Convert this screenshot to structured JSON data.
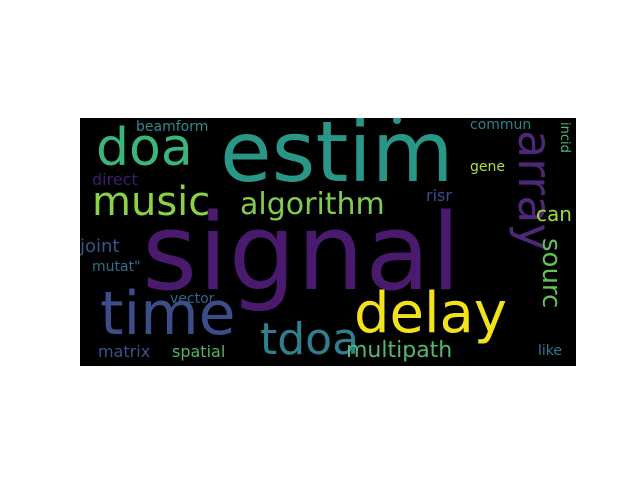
{
  "wordcloud": {
    "background_color": "#000000",
    "words": {
      "signal": "signal",
      "estim": "estim",
      "doa": "doa",
      "music": "music",
      "algorithm": "algorithm",
      "array": "array",
      "time": "time",
      "delay": "delay",
      "tdoa": "tdoa",
      "sourc": "sourc",
      "can": "can",
      "multipath": "multipath",
      "matrix": "matrix",
      "spatial": "spatial",
      "like": "like",
      "vector": "vector",
      "joint": "joint",
      "mutat": "mutat\"",
      "direct": "direct",
      "beamform": "beamform",
      "risr": "risr",
      "gene": "gene",
      "commun": "commun",
      "incid": "incid"
    }
  }
}
